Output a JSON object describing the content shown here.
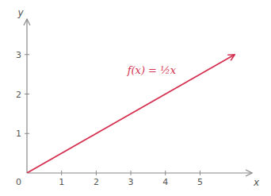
{
  "chart_data": {
    "type": "line",
    "x": [
      0,
      6.0
    ],
    "values": [
      0,
      3.0
    ],
    "color": "#d63050",
    "xlim": [
      0,
      6.5
    ],
    "ylim": [
      0,
      3.9
    ],
    "xticks": [
      1,
      2,
      3,
      4,
      5
    ],
    "yticks": [
      1,
      2,
      3
    ],
    "xlabel": "x",
    "ylabel": "y",
    "grid": false,
    "annotations": [
      {
        "text": "f(x) = ½x",
        "x": 2.9,
        "y": 2.6,
        "color": "#d63050"
      },
      {
        "text": "0",
        "x": 0,
        "y": 0
      }
    ]
  }
}
